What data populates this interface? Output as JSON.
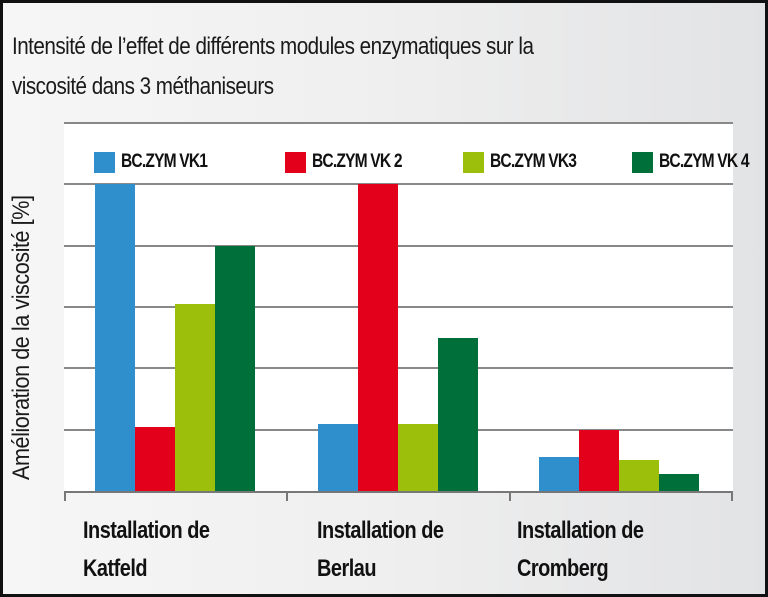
{
  "chart_data": {
    "type": "bar",
    "title": "Intensité de l’effet de différents modules enzymatiques sur la viscosité dans 3 méthaniseurs",
    "title_lines": [
      "Intensité de l’effet de différents modules enzymatiques sur la",
      "viscosité dans 3 méthaniseurs"
    ],
    "xlabel": "",
    "ylabel": "Amélioration de la viscosité [%]",
    "categories": [
      "Installation de Katfeld",
      "Installation de Berlau",
      "Installation de Cromberg"
    ],
    "category_lines": [
      [
        "Installation de",
        "Katfeld"
      ],
      [
        "Installation de",
        "Berlau"
      ],
      [
        "Installation de",
        "Cromberg"
      ]
    ],
    "series": [
      {
        "name": "BC.ZYM VK1",
        "color": "#2e8fcc",
        "values": [
          5.0,
          1.1,
          0.55
        ]
      },
      {
        "name": "BC.ZYM VK 2",
        "color": "#e2001a",
        "values": [
          1.05,
          5.0,
          1.0
        ]
      },
      {
        "name": "BC.ZYM VK3",
        "color": "#9bbf0a",
        "values": [
          3.05,
          1.1,
          0.5
        ]
      },
      {
        "name": "BC.ZYM VK 4",
        "color": "#006f3a",
        "values": [
          4.0,
          2.5,
          0.28
        ]
      }
    ],
    "ylim": [
      0,
      6
    ],
    "y_ticks_labeled": false,
    "grid": true,
    "legend_position": "top-inside"
  }
}
